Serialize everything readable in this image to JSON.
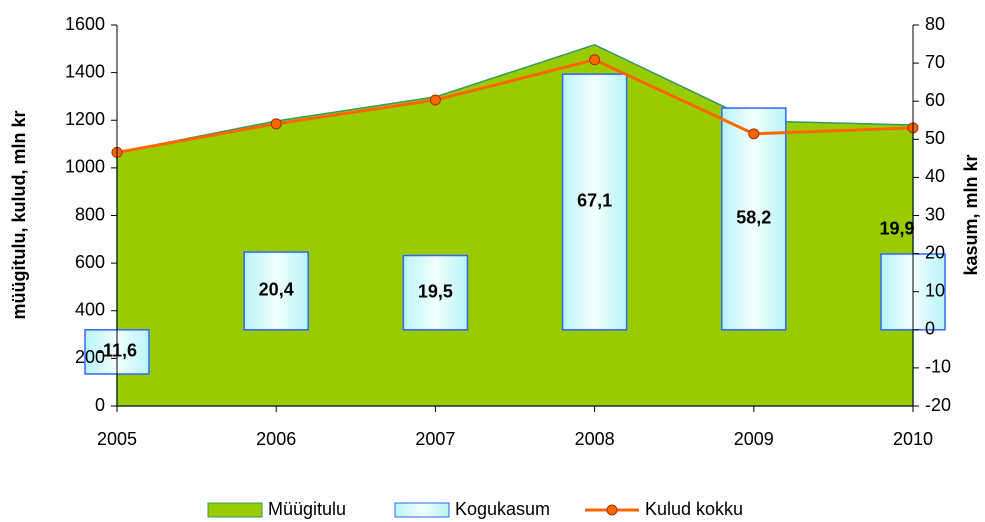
{
  "chart_data": {
    "type": "combo",
    "categories": [
      "2005",
      "2006",
      "2007",
      "2008",
      "2009",
      "2010"
    ],
    "ylabel": "müügitulu, kulud, mln kr",
    "y2label": "kasum, mln kr",
    "ylim": [
      0,
      1600
    ],
    "yticks": [
      0,
      200,
      400,
      600,
      800,
      1000,
      1200,
      1400,
      1600
    ],
    "y2lim": [
      -20,
      80
    ],
    "y2ticks": [
      -20,
      -10,
      0,
      10,
      20,
      30,
      40,
      50,
      60,
      70,
      80
    ],
    "legend": "bottom",
    "series": [
      {
        "name": "Müügitulu",
        "type": "area",
        "color": "#99cc00",
        "values": [
          1065,
          1197,
          1298,
          1517,
          1197,
          1180
        ]
      },
      {
        "name": "Kogukasum",
        "type": "bar",
        "axis": "y2",
        "color": "#3366ff",
        "values": [
          -11.6,
          20.4,
          19.5,
          67.1,
          58.2,
          19.9
        ],
        "value_labels": [
          "-11,6",
          "20,4",
          "19,5",
          "67,1",
          "58,2",
          "19,9"
        ]
      },
      {
        "name": "Kulud kokku",
        "type": "line",
        "color": "#ff6600",
        "values": [
          1065,
          1185,
          1285,
          1454,
          1143,
          1168
        ]
      }
    ]
  }
}
